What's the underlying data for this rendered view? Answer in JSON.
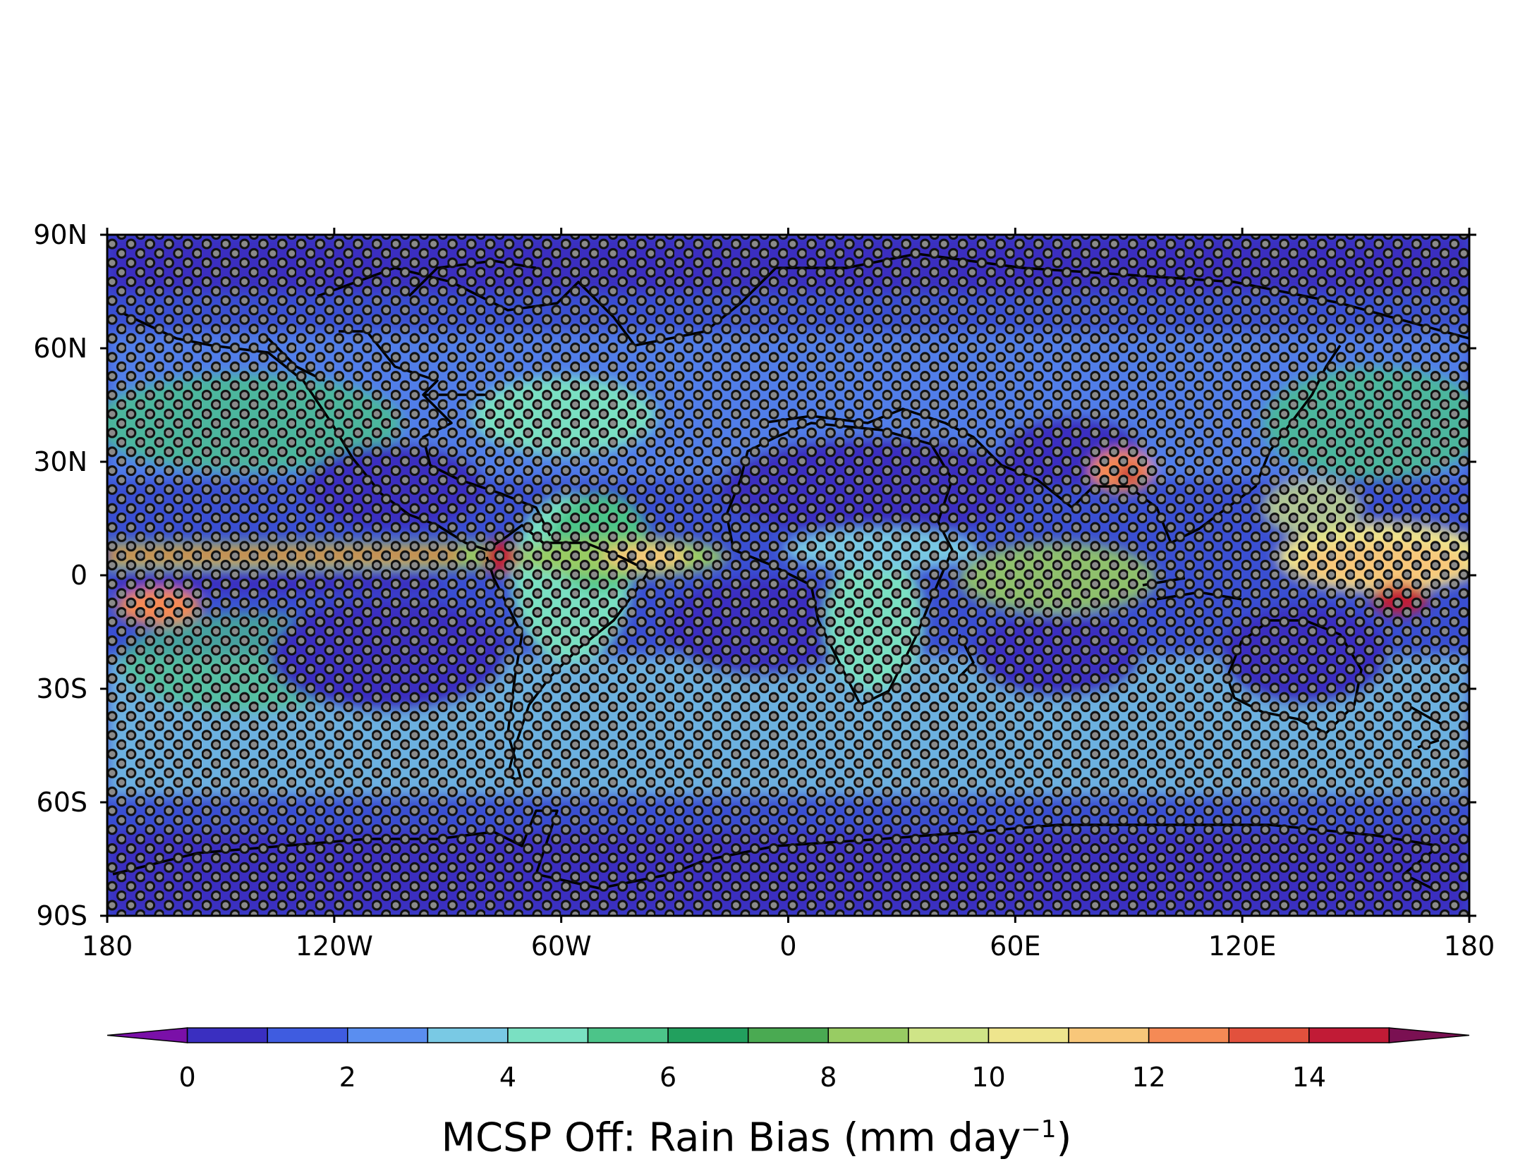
{
  "map": {
    "lon_ticks": [
      "180",
      "120W",
      "60W",
      "0",
      "60E",
      "120E",
      "180"
    ],
    "lat_ticks": [
      "90N",
      "60N",
      "30N",
      "0",
      "30S",
      "60S",
      "90S"
    ],
    "stipple": true
  },
  "colorbar": {
    "levels": [
      -1,
      0,
      1,
      2,
      3,
      4,
      5,
      6,
      7,
      8,
      9,
      10,
      11,
      12,
      13,
      14,
      15,
      16
    ],
    "colors": [
      "#7a10a8",
      "#3a2fc0",
      "#3f5ce0",
      "#5a8ef0",
      "#79c9e4",
      "#7ae0c2",
      "#4cc489",
      "#22a05e",
      "#4aaa52",
      "#98cc63",
      "#cfe487",
      "#eee58d",
      "#f8c77a",
      "#f58a55",
      "#e2513d",
      "#c11b36",
      "#7a1052"
    ],
    "tick_labels": [
      "0",
      "2",
      "4",
      "6",
      "8",
      "10",
      "12",
      "14"
    ],
    "tick_values": [
      0,
      2,
      4,
      6,
      8,
      10,
      12,
      14
    ],
    "extend": "both",
    "title_main": "MCSP Off: Rain Bias (mm day",
    "title_sup": "−1",
    "title_close": ")"
  }
}
